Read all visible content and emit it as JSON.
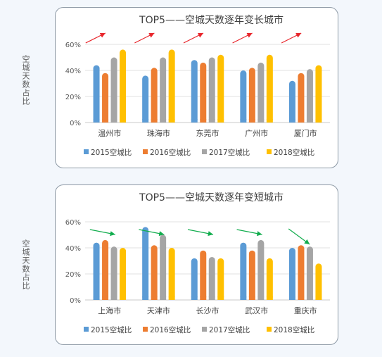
{
  "chart_data": [
    {
      "type": "bar",
      "title": "TOP5——空城天数逐年变长城市",
      "ylabel": "空城天数占比",
      "categories": [
        "温州市",
        "珠海市",
        "东莞市",
        "广州市",
        "厦门市"
      ],
      "yticks": [
        "0%",
        "20%",
        "40%",
        "60%"
      ],
      "ylim": [
        0,
        0.6
      ],
      "series": [
        {
          "name": "2015空城比",
          "color": "#5b9bd5",
          "values": [
            0.44,
            0.36,
            0.48,
            0.4,
            0.32
          ]
        },
        {
          "name": "2016空城比",
          "color": "#ed7d31",
          "values": [
            0.38,
            0.42,
            0.46,
            0.42,
            0.38
          ]
        },
        {
          "name": "2017空城比",
          "color": "#a5a5a5",
          "values": [
            0.5,
            0.5,
            0.5,
            0.46,
            0.41
          ]
        },
        {
          "name": "2018空城比",
          "color": "#ffc000",
          "values": [
            0.56,
            0.56,
            0.52,
            0.52,
            0.44
          ]
        }
      ],
      "trend": "up",
      "arrow_color": "#e8252b",
      "grid": true,
      "legend": "bottom"
    },
    {
      "type": "bar",
      "title": "TOP5——空城天数逐年变短城市",
      "ylabel": "空城天数占比",
      "categories": [
        "上海市",
        "天津市",
        "长沙市",
        "武汉市",
        "重庆市"
      ],
      "yticks": [
        "0%",
        "20%",
        "40%",
        "60%"
      ],
      "ylim": [
        0,
        0.6
      ],
      "series": [
        {
          "name": "2015空城比",
          "color": "#5b9bd5",
          "values": [
            0.44,
            0.56,
            0.32,
            0.44,
            0.4
          ]
        },
        {
          "name": "2016空城比",
          "color": "#ed7d31",
          "values": [
            0.46,
            0.42,
            0.38,
            0.38,
            0.42
          ]
        },
        {
          "name": "2017空城比",
          "color": "#a5a5a5",
          "values": [
            0.41,
            0.5,
            0.33,
            0.46,
            0.41
          ]
        },
        {
          "name": "2018空城比",
          "color": "#ffc000",
          "values": [
            0.4,
            0.4,
            0.32,
            0.32,
            0.28
          ]
        }
      ],
      "trend": "down",
      "arrow_color": "#12ad4e",
      "grid": true,
      "legend": "bottom"
    }
  ]
}
